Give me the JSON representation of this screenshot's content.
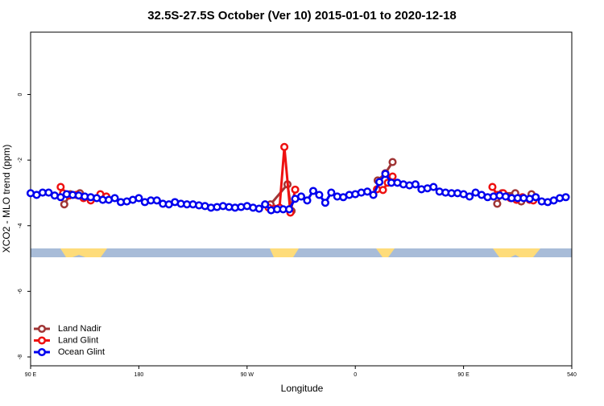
{
  "chart_data": {
    "type": "line",
    "title": "32.5S-27.5S October (Ver 10)   2015-01-01 to 2020-12-18",
    "x_label": "Longitude",
    "y_label": "XCO2 - MLO trend (ppm)",
    "xlim": [
      90,
      540
    ],
    "ylim": [
      -8.27,
      1.9
    ],
    "xticks": [
      {
        "value": 90,
        "label": "90 E"
      },
      180,
      {
        "value": 270,
        "label": "90 W"
      },
      {
        "value": 360,
        "label": "0"
      },
      {
        "value": 450,
        "label": "90 E"
      },
      540
    ],
    "yticks": [
      0,
      -2,
      -4,
      -6,
      -8
    ],
    "legend": "bottom-left",
    "series": [
      {
        "name": "Land Nadir",
        "color": "#a03535",
        "x": [
          118,
          123,
          131,
          200,
          289.5,
          303.6,
          307,
          350,
          378.6,
          385,
          391,
          430,
          478,
          482,
          493,
          498,
          506.5
        ],
        "values": [
          -3.35,
          -3.04,
          -3.01,
          null,
          -3.35,
          -2.74,
          -3.55,
          null,
          -2.62,
          -2.4,
          -2.06,
          null,
          -3.33,
          -3.01,
          -3.01,
          -3.26,
          -3.04
        ]
      },
      {
        "name": "Land Glint",
        "color": "#ee1111",
        "x": [
          115,
          117,
          122,
          128,
          134,
          140,
          148,
          153,
          200,
          288,
          293,
          297,
          301,
          306,
          310,
          350,
          378,
          383,
          387,
          391,
          430,
          474,
          478,
          483,
          489,
          494,
          499,
          505,
          508
        ],
        "values": [
          -2.82,
          -3.01,
          -3.08,
          -3.06,
          -3.16,
          -3.23,
          -3.04,
          -3.11,
          null,
          -3.45,
          -3.48,
          -3.45,
          -1.6,
          -3.6,
          -2.9,
          null,
          -2.89,
          -2.91,
          -2.69,
          -2.5,
          null,
          -2.82,
          -3.06,
          -3.01,
          -3.16,
          -3.21,
          -3.13,
          -3.21,
          -3.23
        ]
      },
      {
        "name": "Ocean Glint",
        "color": "#0000ee",
        "x": [
          90,
          95,
          100,
          105,
          110,
          115,
          120,
          125,
          130,
          135,
          140,
          145,
          150,
          155,
          160,
          165,
          170,
          175,
          180,
          185,
          190,
          195,
          200,
          205,
          210,
          215,
          220,
          225,
          230,
          235,
          240,
          245,
          250,
          255,
          260,
          265,
          270,
          275,
          280,
          285,
          290,
          295,
          300,
          305,
          310,
          315,
          320,
          325,
          330,
          335,
          340,
          345,
          350,
          355,
          360,
          365,
          370,
          375,
          380,
          385,
          390,
          395,
          400,
          405,
          410,
          415,
          420,
          425,
          430,
          435,
          440,
          445,
          450,
          455,
          460,
          465,
          470,
          475,
          480,
          485,
          490,
          495,
          500,
          505,
          510,
          515,
          520,
          525,
          530,
          535
        ],
        "values": [
          -3.01,
          -3.06,
          -2.99,
          -2.99,
          -3.08,
          -3.13,
          -3.04,
          -3.06,
          -3.08,
          -3.11,
          -3.13,
          -3.16,
          -3.21,
          -3.21,
          -3.16,
          -3.28,
          -3.26,
          -3.21,
          -3.16,
          -3.28,
          -3.23,
          -3.23,
          -3.33,
          -3.35,
          -3.28,
          -3.33,
          -3.35,
          -3.35,
          -3.38,
          -3.4,
          -3.45,
          -3.43,
          -3.4,
          -3.43,
          -3.45,
          -3.43,
          -3.4,
          -3.45,
          -3.48,
          -3.35,
          -3.53,
          -3.5,
          -3.5,
          -3.5,
          -3.18,
          -3.11,
          -3.23,
          -2.94,
          -3.06,
          -3.3,
          -2.99,
          -3.11,
          -3.13,
          -3.06,
          -3.04,
          -2.99,
          -2.96,
          -3.06,
          -2.67,
          -2.42,
          -2.69,
          -2.69,
          -2.74,
          -2.77,
          -2.74,
          -2.89,
          -2.86,
          -2.82,
          -2.96,
          -2.99,
          -3.01,
          -3.01,
          -3.04,
          -3.11,
          -2.99,
          -3.06,
          -3.13,
          -3.11,
          -3.08,
          -3.11,
          -3.16,
          -3.16,
          -3.16,
          -3.18,
          -3.13,
          -3.26,
          -3.28,
          -3.23,
          -3.16,
          -3.13
        ]
      }
    ]
  }
}
